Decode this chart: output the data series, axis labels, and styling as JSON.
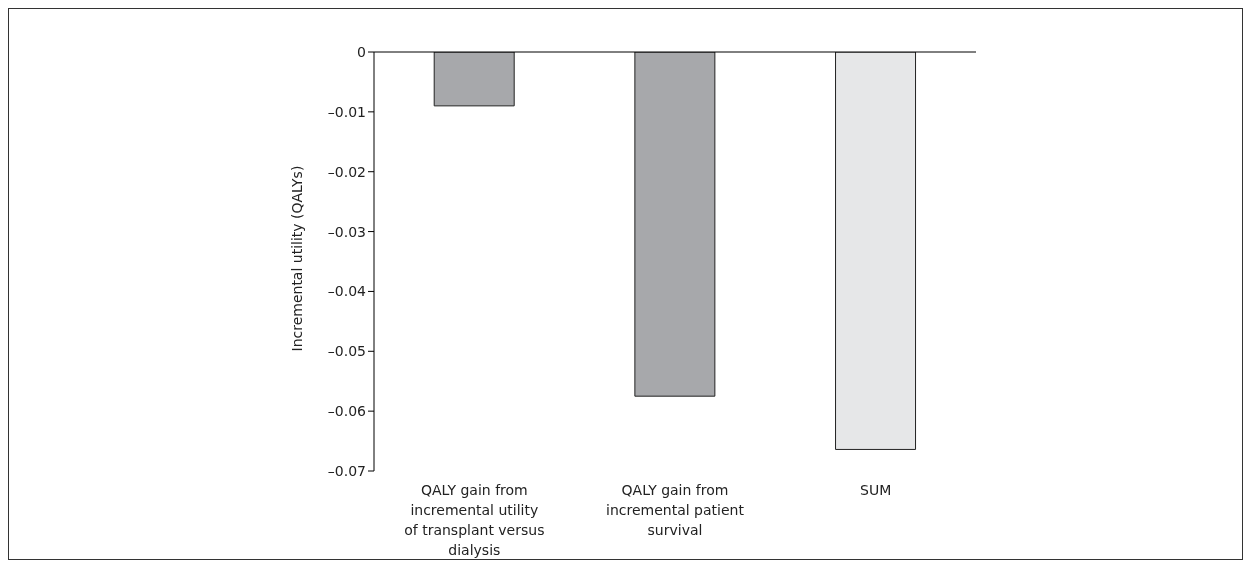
{
  "chart_data": {
    "type": "bar",
    "ylabel": "Incremental utility (QALYs)",
    "categories": [
      "QALY gain from incremental utility of transplant versus dialysis",
      "QALY gain from incremental patient survival",
      "SUM"
    ],
    "values": [
      -0.009,
      -0.0575,
      -0.0664
    ],
    "colors": [
      "#a7a8ab",
      "#a7a8ab",
      "#e6e7e8"
    ],
    "ylim": [
      -0.07,
      0
    ],
    "yticks": [
      0,
      {
        "value": -0.01,
        "label": "–0.01"
      },
      {
        "value": -0.02,
        "label": "–0.02"
      },
      {
        "value": -0.03,
        "label": "–0.03"
      },
      {
        "value": -0.04,
        "label": "–0.04"
      },
      {
        "value": -0.05,
        "label": "–0.05"
      },
      {
        "value": -0.06,
        "label": "–0.06"
      },
      {
        "value": -0.07,
        "label": "–0.07"
      }
    ],
    "grid": false,
    "legend": false
  }
}
